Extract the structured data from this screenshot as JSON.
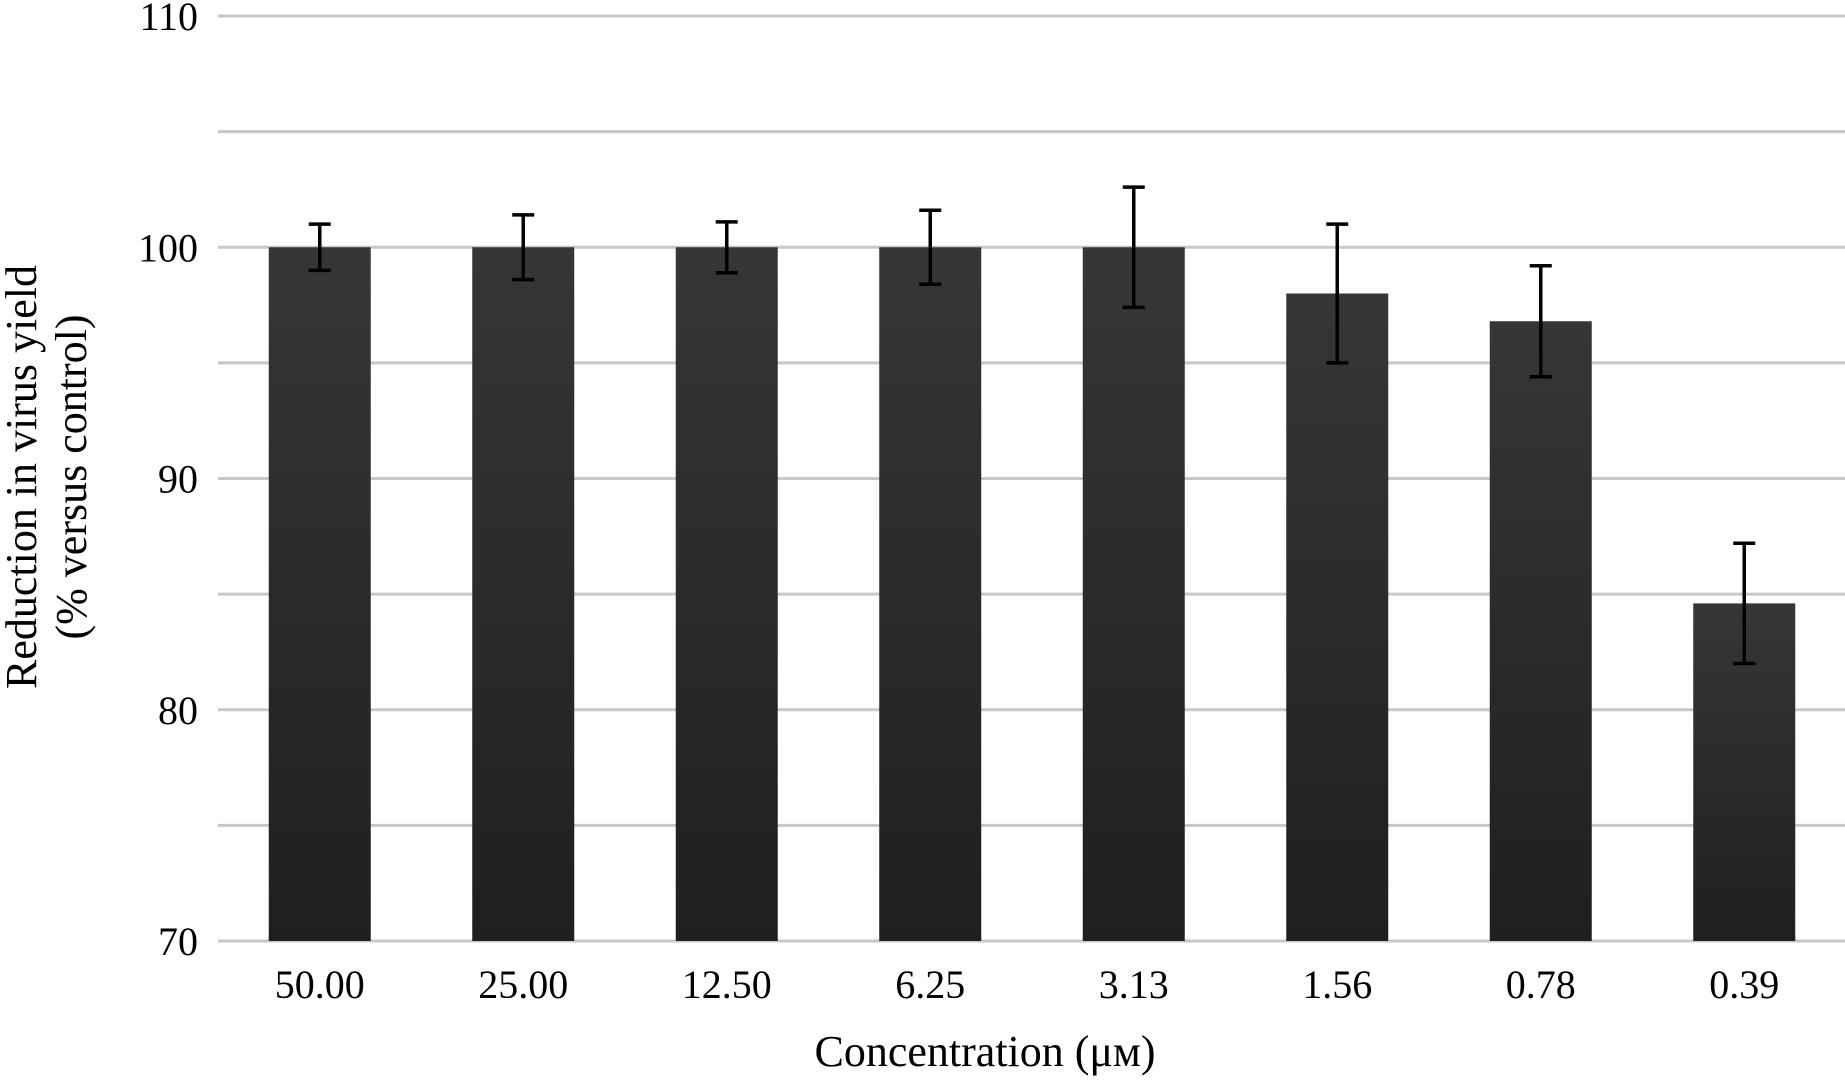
{
  "chart_data": {
    "type": "bar",
    "title": "",
    "xlabel": "Concentration (μм)",
    "ylabel_lines": [
      "Reduction in virus yield",
      "(% versus control)"
    ],
    "categories": [
      "50.00",
      "25.00",
      "12.50",
      "6.25",
      "3.13",
      "1.56",
      "0.78",
      "0.39"
    ],
    "values": [
      100,
      100,
      100,
      100,
      100,
      98,
      96.8,
      84.6
    ],
    "error_bars": [
      1.0,
      1.4,
      1.1,
      1.6,
      2.6,
      3.0,
      2.4,
      2.6
    ],
    "ylim": [
      70,
      110
    ],
    "yticks": [
      70,
      80,
      90,
      100,
      110
    ],
    "gridlines": [
      70,
      75,
      80,
      85,
      90,
      95,
      100,
      105,
      110
    ],
    "grid": true,
    "legend": "none",
    "colors": {
      "bar_top": "#363636",
      "bar_bottom": "#1f1f1f",
      "grid": "#c8c8c8",
      "error_bar": "#000000"
    }
  }
}
